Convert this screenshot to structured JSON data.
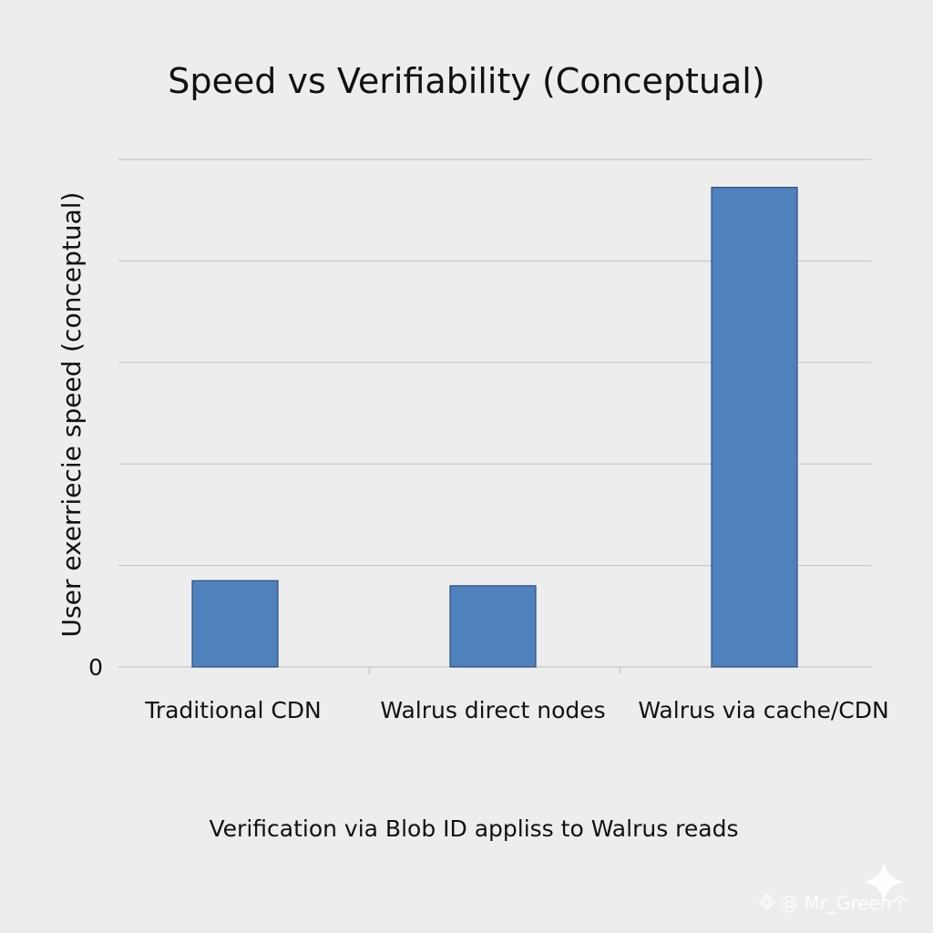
{
  "chart_data": {
    "type": "bar",
    "title": "Speed vs Verifiability (Conceptual)",
    "ylabel": "User exerriecie speed (conceptual)",
    "xlabel": "",
    "categories": [
      "Traditional CDN",
      "Walrus direct nodes",
      "Walrus via cache/CDN"
    ],
    "values": [
      1.7,
      1.6,
      9.45
    ],
    "ylim": [
      0,
      10
    ],
    "yticks": [
      0
    ],
    "ytick_labels": [
      "0"
    ],
    "gridlines": [
      0,
      2,
      4,
      6,
      8,
      10
    ],
    "grid": true,
    "legend": "none",
    "bar_color": "#4f81bd",
    "caption": "Verification via Blob ID appliss to Walrus reads"
  },
  "watermark": {
    "text": "@ Mr_Green个",
    "icon": "watermark-logo-icon"
  }
}
